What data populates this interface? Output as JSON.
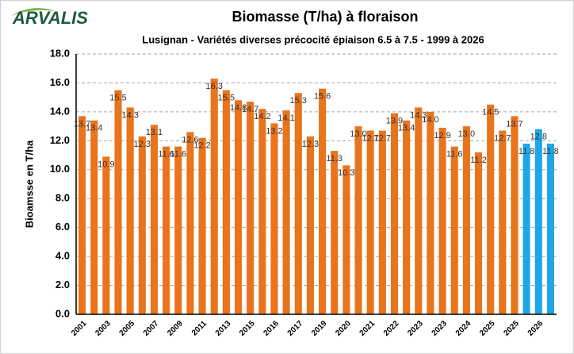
{
  "logo": "ARVALIS",
  "chart_data": {
    "type": "bar",
    "title": "Biomasse (T/ha) à floraison",
    "subtitle": "Lusignan - Variétés diverses précocité épiaison 6.5 à 7.5 - 1999 à 2026",
    "y_label": "Bioamsse en T/ha",
    "categories": [
      "2001",
      null,
      "2003",
      null,
      "2005",
      null,
      "2007",
      null,
      "2009",
      null,
      "2011",
      null,
      "2013",
      null,
      "2015",
      null,
      "2016",
      null,
      "2017",
      null,
      "2019",
      null,
      "2020",
      null,
      "2021",
      null,
      "2022",
      null,
      "2023",
      null,
      "2023",
      null,
      "2024",
      null,
      "2025",
      null,
      "2025",
      null,
      "2026",
      null
    ],
    "values": [
      13.7,
      13.4,
      10.9,
      15.5,
      14.3,
      12.3,
      13.1,
      11.6,
      11.6,
      12.6,
      12.2,
      16.3,
      15.5,
      14.8,
      14.7,
      14.2,
      13.2,
      14.1,
      15.3,
      12.3,
      15.6,
      11.3,
      10.3,
      13.0,
      12.7,
      12.7,
      13.9,
      13.4,
      14.3,
      14.0,
      12.9,
      11.6,
      13.0,
      11.2,
      14.5,
      12.7,
      13.7,
      11.8,
      12.8,
      11.8
    ],
    "value_labels": [
      "13.7",
      "13.4",
      "10.9",
      "15.5",
      "14.3",
      "12.3",
      "13.1",
      "11.6",
      "11.6",
      "12.6",
      "12.2",
      "16.3",
      "15.5",
      "14.8",
      "14.7",
      "14.2",
      "13.2",
      "14.1",
      "15.3",
      "12.3",
      "15.6",
      "11.3",
      "10.3",
      "13.0",
      "12.7",
      "12.7",
      "13.9",
      "13.4",
      "14.3",
      "14.0",
      "12.9",
      "11.6",
      "13.0",
      "11.2",
      "14.5",
      "12.7",
      "13.7",
      "11.8",
      "12.8",
      "11.8"
    ],
    "colors": [
      "#e8741c",
      "#e8741c",
      "#e8741c",
      "#e8741c",
      "#e8741c",
      "#e8741c",
      "#e8741c",
      "#e8741c",
      "#e8741c",
      "#e8741c",
      "#e8741c",
      "#e8741c",
      "#e8741c",
      "#e8741c",
      "#e8741c",
      "#e8741c",
      "#e8741c",
      "#e8741c",
      "#e8741c",
      "#e8741c",
      "#e8741c",
      "#e8741c",
      "#e8741c",
      "#e8741c",
      "#e8741c",
      "#e8741c",
      "#e8741c",
      "#e8741c",
      "#e8741c",
      "#e8741c",
      "#e8741c",
      "#e8741c",
      "#e8741c",
      "#e8741c",
      "#e8741c",
      "#e8741c",
      "#e8741c",
      "#1ea6e6",
      "#1ea6e6",
      "#1ea6e6"
    ],
    "ylim": [
      0,
      18
    ],
    "yticks": [
      {
        "value": 0,
        "label": "0.0"
      },
      {
        "value": 2,
        "label": "2.0"
      },
      {
        "value": 4,
        "label": "4.0"
      },
      {
        "value": 6,
        "label": "6.0"
      },
      {
        "value": 8,
        "label": "8.0"
      },
      {
        "value": 10,
        "label": "10.0"
      },
      {
        "value": 12,
        "label": "12.0"
      },
      {
        "value": 14,
        "label": "14.0"
      },
      {
        "value": 16,
        "label": "16.0"
      },
      {
        "value": 18,
        "label": "18.0"
      }
    ],
    "grid": true
  }
}
